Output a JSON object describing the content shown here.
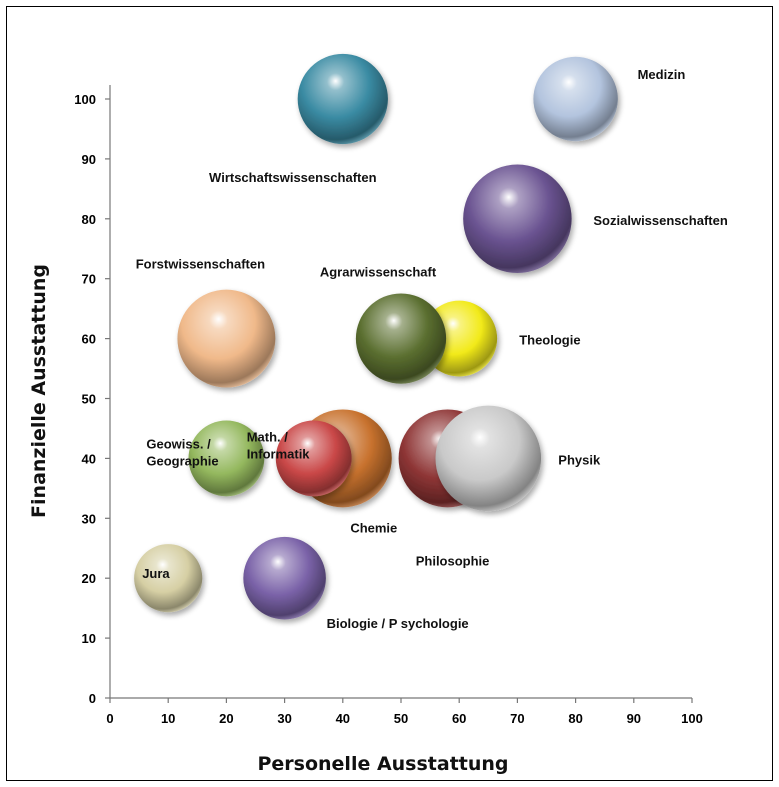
{
  "chart_data": {
    "type": "bubble",
    "xlabel": "Personelle Ausstattung",
    "ylabel": "Finanzielle Ausstattung",
    "xlim": [
      0,
      100
    ],
    "ylim": [
      0,
      100
    ],
    "xticks": [
      0,
      10,
      20,
      30,
      40,
      50,
      60,
      70,
      80,
      90,
      100
    ],
    "yticks": [
      0,
      10,
      20,
      30,
      40,
      50,
      60,
      70,
      80,
      90,
      100
    ],
    "grid": false,
    "legend": "none",
    "points": [
      {
        "label": "Wirtschaftswissenschaften",
        "x": 40,
        "y": 100,
        "size": 0.94,
        "color": "#3a8ba3"
      },
      {
        "label": "Medizin",
        "x": 80,
        "y": 100,
        "size": 0.88,
        "color": "#b3c4de"
      },
      {
        "label": "Sozialwissenschaften",
        "x": 70,
        "y": 80,
        "size": 1.13,
        "color": "#6a5391"
      },
      {
        "label": "Forstwissenschaften",
        "x": 20,
        "y": 60,
        "size": 1.02,
        "color": "#f0b98a"
      },
      {
        "label": "Theologie",
        "x": 60,
        "y": 60,
        "size": 0.79,
        "color": "#f2ea1a"
      },
      {
        "label": "Agrarwissenschaft",
        "x": 50,
        "y": 60,
        "size": 0.94,
        "color": "#5b6f30"
      },
      {
        "label": "Chemie",
        "x": 40,
        "y": 40,
        "size": 1.02,
        "color": "#c8722e"
      },
      {
        "label": "Philosophie",
        "x": 58,
        "y": 40,
        "size": 1.02,
        "color": "#8e3535"
      },
      {
        "label": "Physik",
        "x": 65,
        "y": 40,
        "size": 1.1,
        "color": "#c9c9c9"
      },
      {
        "label": "Geowiss. /\nGeographie",
        "x": 20,
        "y": 40,
        "size": 0.79,
        "color": "#94b85e"
      },
      {
        "label": "Math. /\nInformatik",
        "x": 35,
        "y": 40,
        "size": 0.79,
        "color": "#c94747"
      },
      {
        "label": "Jura",
        "x": 10,
        "y": 20,
        "size": 0.71,
        "color": "#d6cfa4"
      },
      {
        "label": "Biologie / P sychologie",
        "x": 30,
        "y": 20,
        "size": 0.86,
        "color": "#7a62a8"
      }
    ]
  }
}
